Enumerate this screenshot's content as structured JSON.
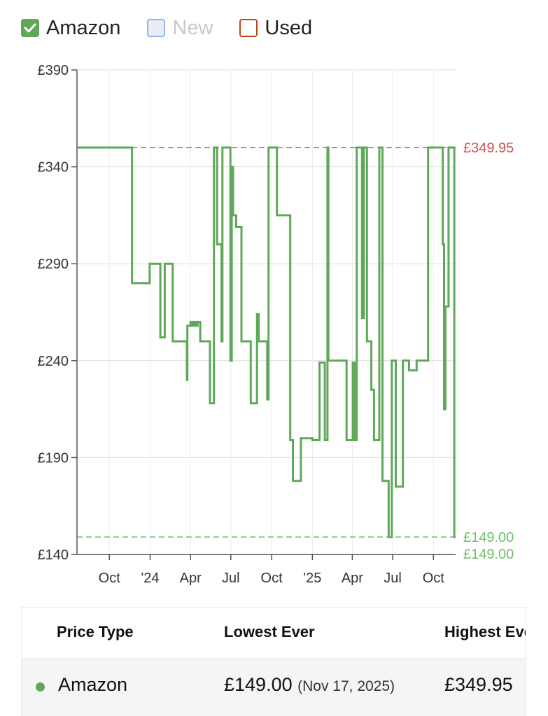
{
  "legend": {
    "amazon": {
      "label": "Amazon",
      "checked": true,
      "color": "#5fa85a"
    },
    "new": {
      "label": "New",
      "checked": false,
      "color": "#8fb5f0",
      "text_color": "#c8c8c8"
    },
    "used": {
      "label": "Used",
      "checked": false,
      "color": "#c0441b"
    }
  },
  "chart_data": {
    "type": "line",
    "step": true,
    "y_unit": "£",
    "ylim": [
      140,
      390
    ],
    "y_ticks": [
      140,
      190,
      240,
      290,
      340,
      390
    ],
    "y_tick_labels": [
      "£140",
      "£190",
      "£240",
      "£290",
      "£340",
      "£390"
    ],
    "xlim": [
      "2023-07-20",
      "2025-11-20"
    ],
    "x_ticks": [
      {
        "date": "2023-10-01",
        "label": "Oct"
      },
      {
        "date": "2024-01-01",
        "label": "'24"
      },
      {
        "date": "2024-04-01",
        "label": "Apr"
      },
      {
        "date": "2024-07-01",
        "label": "Jul"
      },
      {
        "date": "2024-10-01",
        "label": "Oct"
      },
      {
        "date": "2025-01-01",
        "label": "'25"
      },
      {
        "date": "2025-04-01",
        "label": "Apr"
      },
      {
        "date": "2025-07-01",
        "label": "Jul"
      },
      {
        "date": "2025-10-01",
        "label": "Oct"
      }
    ],
    "grid": true,
    "series": [
      {
        "name": "Amazon",
        "color": "#5fa85a",
        "points": [
          [
            "2023-07-20",
            349.95
          ],
          [
            "2023-11-21",
            280
          ],
          [
            "2023-12-31",
            290
          ],
          [
            "2024-01-24",
            252
          ],
          [
            "2024-02-03",
            290
          ],
          [
            "2024-02-21",
            250
          ],
          [
            "2024-03-24",
            230
          ],
          [
            "2024-03-25",
            258
          ],
          [
            "2024-04-01",
            260
          ],
          [
            "2024-04-05",
            258
          ],
          [
            "2024-04-09",
            260
          ],
          [
            "2024-04-13",
            258
          ],
          [
            "2024-04-17",
            260
          ],
          [
            "2024-04-23",
            250
          ],
          [
            "2024-05-15",
            218
          ],
          [
            "2024-05-24",
            349.95
          ],
          [
            "2024-05-31",
            300
          ],
          [
            "2024-06-10",
            250
          ],
          [
            "2024-06-12",
            349.95
          ],
          [
            "2024-06-30",
            240
          ],
          [
            "2024-07-03",
            340
          ],
          [
            "2024-07-06",
            315
          ],
          [
            "2024-07-13",
            309
          ],
          [
            "2024-07-25",
            250
          ],
          [
            "2024-08-15",
            218
          ],
          [
            "2024-08-29",
            264
          ],
          [
            "2024-09-02",
            250
          ],
          [
            "2024-09-21",
            220
          ],
          [
            "2024-09-24",
            349.95
          ],
          [
            "2024-10-13",
            315
          ],
          [
            "2024-11-12",
            199
          ],
          [
            "2024-11-18",
            178
          ],
          [
            "2024-12-06",
            200
          ],
          [
            "2025-01-01",
            199
          ],
          [
            "2025-01-17",
            239
          ],
          [
            "2025-01-29",
            199
          ],
          [
            "2025-02-04",
            349.95
          ],
          [
            "2025-02-06",
            240
          ],
          [
            "2025-03-19",
            199
          ],
          [
            "2025-04-02",
            239
          ],
          [
            "2025-04-06",
            199
          ],
          [
            "2025-04-11",
            349.95
          ],
          [
            "2025-04-23",
            262
          ],
          [
            "2025-04-27",
            349.95
          ],
          [
            "2025-05-04",
            250
          ],
          [
            "2025-05-14",
            225
          ],
          [
            "2025-05-20",
            199
          ],
          [
            "2025-06-01",
            349.95
          ],
          [
            "2025-06-08",
            178
          ],
          [
            "2025-06-22",
            149
          ],
          [
            "2025-06-29",
            240
          ],
          [
            "2025-07-08",
            175
          ],
          [
            "2025-07-24",
            240
          ],
          [
            "2025-08-07",
            235
          ],
          [
            "2025-08-24",
            240
          ],
          [
            "2025-09-19",
            349.95
          ],
          [
            "2025-10-22",
            300
          ],
          [
            "2025-10-25",
            215
          ],
          [
            "2025-10-28",
            268
          ],
          [
            "2025-11-04",
            349.95
          ],
          [
            "2025-11-17",
            149
          ],
          [
            "2025-11-20",
            149
          ]
        ]
      }
    ],
    "reference_lines": [
      {
        "value": 349.95,
        "label": "£349.95",
        "color": "#d05050"
      },
      {
        "value": 149.0,
        "label": "£149.00",
        "color": "#6cc06a"
      }
    ],
    "end_label": {
      "value": 149.0,
      "label": "£149.00",
      "color": "#6cc06a"
    }
  },
  "table": {
    "headers": [
      "Price Type",
      "Lowest Ever",
      "Highest Ever"
    ],
    "rows": [
      {
        "type": "Amazon",
        "dot_color": "#5fa85a",
        "lowest": "£149.00",
        "lowest_date": "(Nov 17, 2025)",
        "highest": "£349.95"
      }
    ]
  }
}
